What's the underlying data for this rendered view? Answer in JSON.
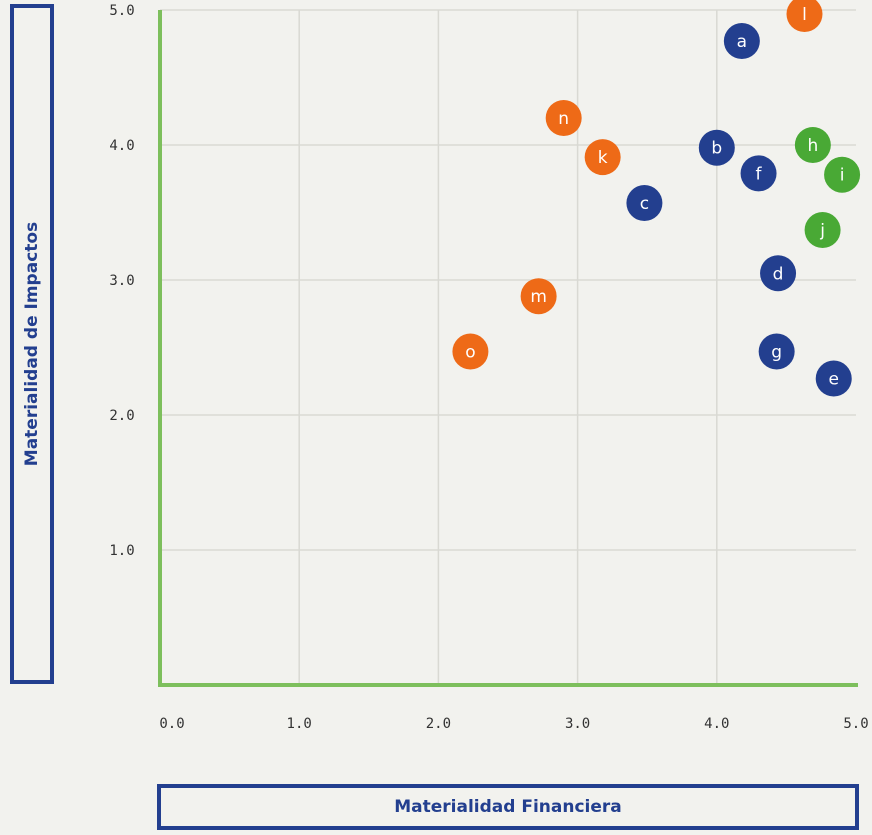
{
  "chart_data": {
    "type": "scatter",
    "xlabel": "Materialidad Financiera",
    "ylabel": "Materialidad de Impactos",
    "xlim": [
      0,
      5
    ],
    "ylim": [
      0,
      5
    ],
    "x_ticks": [
      "0.0",
      "1.0",
      "2.0",
      "3.0",
      "4.0",
      "5.0"
    ],
    "y_ticks": [
      "1.0",
      "2.0",
      "3.0",
      "4.0",
      "5.0"
    ],
    "grid": true,
    "colors": {
      "blue": "#233f8f",
      "orange": "#ee6a17",
      "green": "#49a935",
      "axis": "#7dbf5c",
      "grid": "#d9d9d3"
    },
    "points": [
      {
        "label": "a",
        "x": 4.18,
        "y": 4.77,
        "color": "blue"
      },
      {
        "label": "b",
        "x": 4.0,
        "y": 3.98,
        "color": "blue"
      },
      {
        "label": "c",
        "x": 3.48,
        "y": 3.57,
        "color": "blue"
      },
      {
        "label": "d",
        "x": 4.44,
        "y": 3.05,
        "color": "blue"
      },
      {
        "label": "e",
        "x": 4.84,
        "y": 2.27,
        "color": "blue"
      },
      {
        "label": "f",
        "x": 4.3,
        "y": 3.79,
        "color": "blue"
      },
      {
        "label": "g",
        "x": 4.43,
        "y": 2.47,
        "color": "blue"
      },
      {
        "label": "h",
        "x": 4.69,
        "y": 4.0,
        "color": "green"
      },
      {
        "label": "i",
        "x": 4.9,
        "y": 3.78,
        "color": "green"
      },
      {
        "label": "j",
        "x": 4.76,
        "y": 3.37,
        "color": "green"
      },
      {
        "label": "k",
        "x": 3.18,
        "y": 3.91,
        "color": "orange"
      },
      {
        "label": "l",
        "x": 4.63,
        "y": 4.97,
        "color": "orange"
      },
      {
        "label": "m",
        "x": 2.72,
        "y": 2.88,
        "color": "orange"
      },
      {
        "label": "n",
        "x": 2.9,
        "y": 4.2,
        "color": "orange"
      },
      {
        "label": "o",
        "x": 2.23,
        "y": 2.47,
        "color": "orange"
      }
    ]
  }
}
